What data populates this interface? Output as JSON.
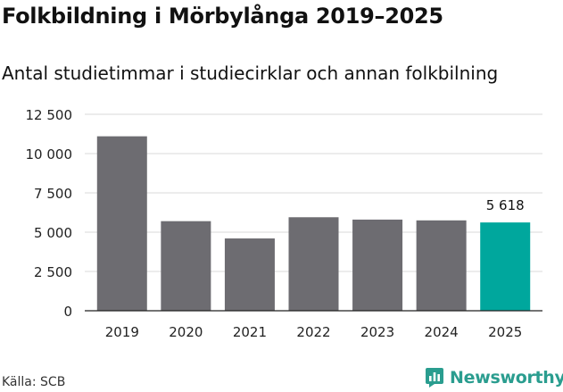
{
  "title": "Folkbildning i Mörbylånga 2019–2025",
  "subtitle": "Antal studietimmar i studiecirklar och annan folkbilning",
  "source": "Källa: SCB",
  "brand": {
    "name": "Newsworthy",
    "icon": "newsworthy-logo-icon",
    "color": "#2a9d8f"
  },
  "colors": {
    "bar": "#6d6c71",
    "highlight": "#00a79d",
    "grid": "#d9d9d9"
  },
  "chart_data": {
    "type": "bar",
    "title": "Folkbildning i Mörbylånga 2019–2025",
    "subtitle": "Antal studietimmar i studiecirklar och annan folkbilning",
    "categories": [
      "2019",
      "2020",
      "2021",
      "2022",
      "2023",
      "2024",
      "2025"
    ],
    "values": [
      11100,
      5700,
      4600,
      5950,
      5800,
      5750,
      5618
    ],
    "highlight_index": 6,
    "data_labels": [
      null,
      null,
      null,
      null,
      null,
      null,
      "5 618"
    ],
    "ylim": [
      0,
      12500
    ],
    "yticks": [
      0,
      2500,
      5000,
      7500,
      10000,
      12500
    ],
    "ytick_labels": [
      "0",
      "2 500",
      "5 000",
      "7 500",
      "10 000",
      "12 500"
    ],
    "xlabel": "",
    "ylabel": "",
    "grid": true,
    "legend": false
  }
}
